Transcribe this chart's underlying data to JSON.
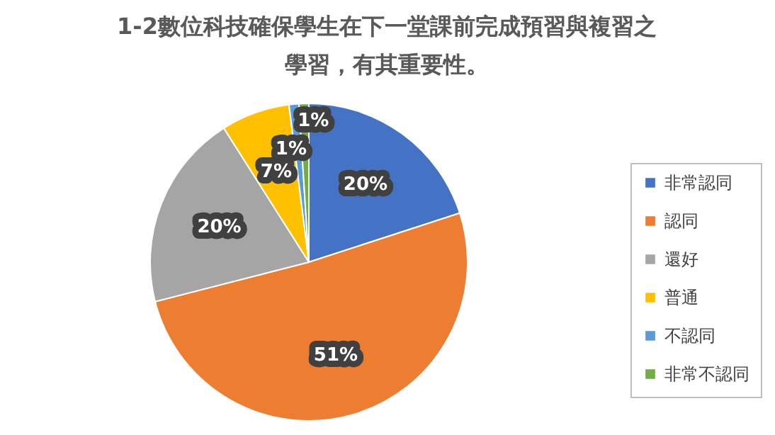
{
  "chart_data": {
    "type": "pie",
    "title": "1-2數位科技確保學生在下一堂課前完成預習與複習之學習，有其重要性。",
    "categories": [
      "非常認同",
      "認同",
      "還好",
      "普通",
      "不認同",
      "非常不認同"
    ],
    "values": [
      20,
      51,
      20,
      7,
      1,
      1
    ],
    "colors": [
      "#4472c4",
      "#ed7d31",
      "#a5a5a5",
      "#ffc000",
      "#5b9bd5",
      "#70ad47"
    ],
    "value_labels": [
      "20%",
      "51%",
      "20%",
      "7%",
      "1%",
      "1%"
    ],
    "legend": "right"
  }
}
